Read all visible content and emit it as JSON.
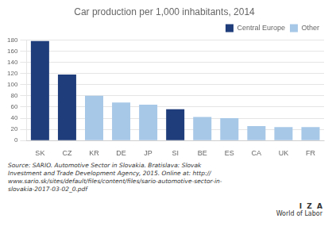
{
  "chart_data": {
    "type": "bar",
    "title": "Car production per 1,000 inhabitants, 2014",
    "categories": [
      "SK",
      "CZ",
      "KR",
      "DE",
      "JP",
      "SI",
      "BE",
      "ES",
      "CA",
      "UK",
      "FR"
    ],
    "series": [
      {
        "name": "Central Europe",
        "color": "#1f3d7a",
        "values": [
          178,
          118,
          null,
          null,
          null,
          56,
          null,
          null,
          null,
          null,
          null
        ]
      },
      {
        "name": "Other",
        "color": "#a8c8e8",
        "values": [
          null,
          null,
          80,
          68,
          64,
          null,
          42,
          40,
          26,
          24,
          24
        ]
      }
    ],
    "ylim": [
      0,
      180
    ],
    "yticks": [
      0,
      20,
      40,
      60,
      80,
      100,
      120,
      140,
      160,
      180
    ],
    "grid": true,
    "legend": "upper right",
    "source": [
      "Source: SARIO. Automotive Sector in Slovakia. Bratislava: Slovak",
      "Investment and Trade Development Agency, 2015. Online at: http://",
      "www.sario.sk/sites/default/files/content/files/sario-automotive-sector-in-",
      "slovakia-2017-03-02_0.pdf"
    ],
    "annotations": [
      "I  Z  A",
      "World of Labor"
    ]
  }
}
